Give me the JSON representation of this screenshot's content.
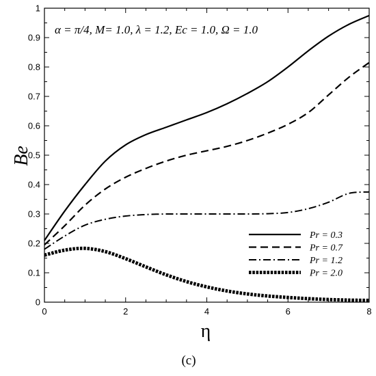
{
  "chart_data": {
    "type": "line",
    "xlabel": "η",
    "ylabel": "Be",
    "xlim": [
      0,
      8
    ],
    "ylim": [
      0,
      1
    ],
    "x_ticks": [
      0,
      2,
      4,
      6,
      8
    ],
    "y_ticks": [
      0,
      0.1,
      0.2,
      0.3,
      0.4,
      0.5,
      0.6,
      0.7,
      0.8,
      0.9,
      1
    ],
    "annotation": "α = π/4, M= 1.0, λ = 1.2, Ec = 1.0, Ω = 1.0",
    "legend_position": "lower-right",
    "caption": "(c)",
    "series": [
      {
        "name": "Pr = 0.3",
        "style": "solid",
        "x": [
          0,
          0.5,
          1,
          1.5,
          2,
          2.5,
          3,
          3.5,
          4,
          4.5,
          5,
          5.5,
          6,
          6.5,
          7,
          7.5,
          8
        ],
        "values": [
          0.21,
          0.31,
          0.4,
          0.48,
          0.535,
          0.57,
          0.595,
          0.62,
          0.645,
          0.675,
          0.71,
          0.75,
          0.8,
          0.855,
          0.905,
          0.945,
          0.975
        ]
      },
      {
        "name": "Pr = 0.7",
        "style": "dashed",
        "x": [
          0,
          0.5,
          1,
          1.5,
          2,
          2.5,
          3,
          3.5,
          4,
          4.5,
          5,
          5.5,
          6,
          6.5,
          7,
          7.5,
          8
        ],
        "values": [
          0.195,
          0.26,
          0.33,
          0.385,
          0.425,
          0.455,
          0.48,
          0.5,
          0.515,
          0.53,
          0.55,
          0.575,
          0.605,
          0.645,
          0.705,
          0.765,
          0.815
        ]
      },
      {
        "name": "Pr = 1.2",
        "style": "dash-dot",
        "x": [
          0,
          0.5,
          1,
          1.5,
          2,
          2.5,
          3,
          3.5,
          4,
          4.5,
          5,
          5.5,
          6,
          6.5,
          7,
          7.5,
          8
        ],
        "values": [
          0.18,
          0.225,
          0.262,
          0.282,
          0.293,
          0.298,
          0.3,
          0.3,
          0.3,
          0.3,
          0.3,
          0.301,
          0.305,
          0.318,
          0.34,
          0.37,
          0.375
        ]
      },
      {
        "name": "Pr = 2.0",
        "style": "dotted",
        "x": [
          0,
          0.5,
          1,
          1.5,
          2,
          2.5,
          3,
          3.5,
          4,
          4.5,
          5,
          5.5,
          6,
          6.5,
          7,
          7.5,
          8
        ],
        "values": [
          0.16,
          0.177,
          0.183,
          0.172,
          0.148,
          0.12,
          0.093,
          0.07,
          0.052,
          0.038,
          0.028,
          0.021,
          0.016,
          0.012,
          0.009,
          0.007,
          0.006
        ]
      }
    ]
  }
}
